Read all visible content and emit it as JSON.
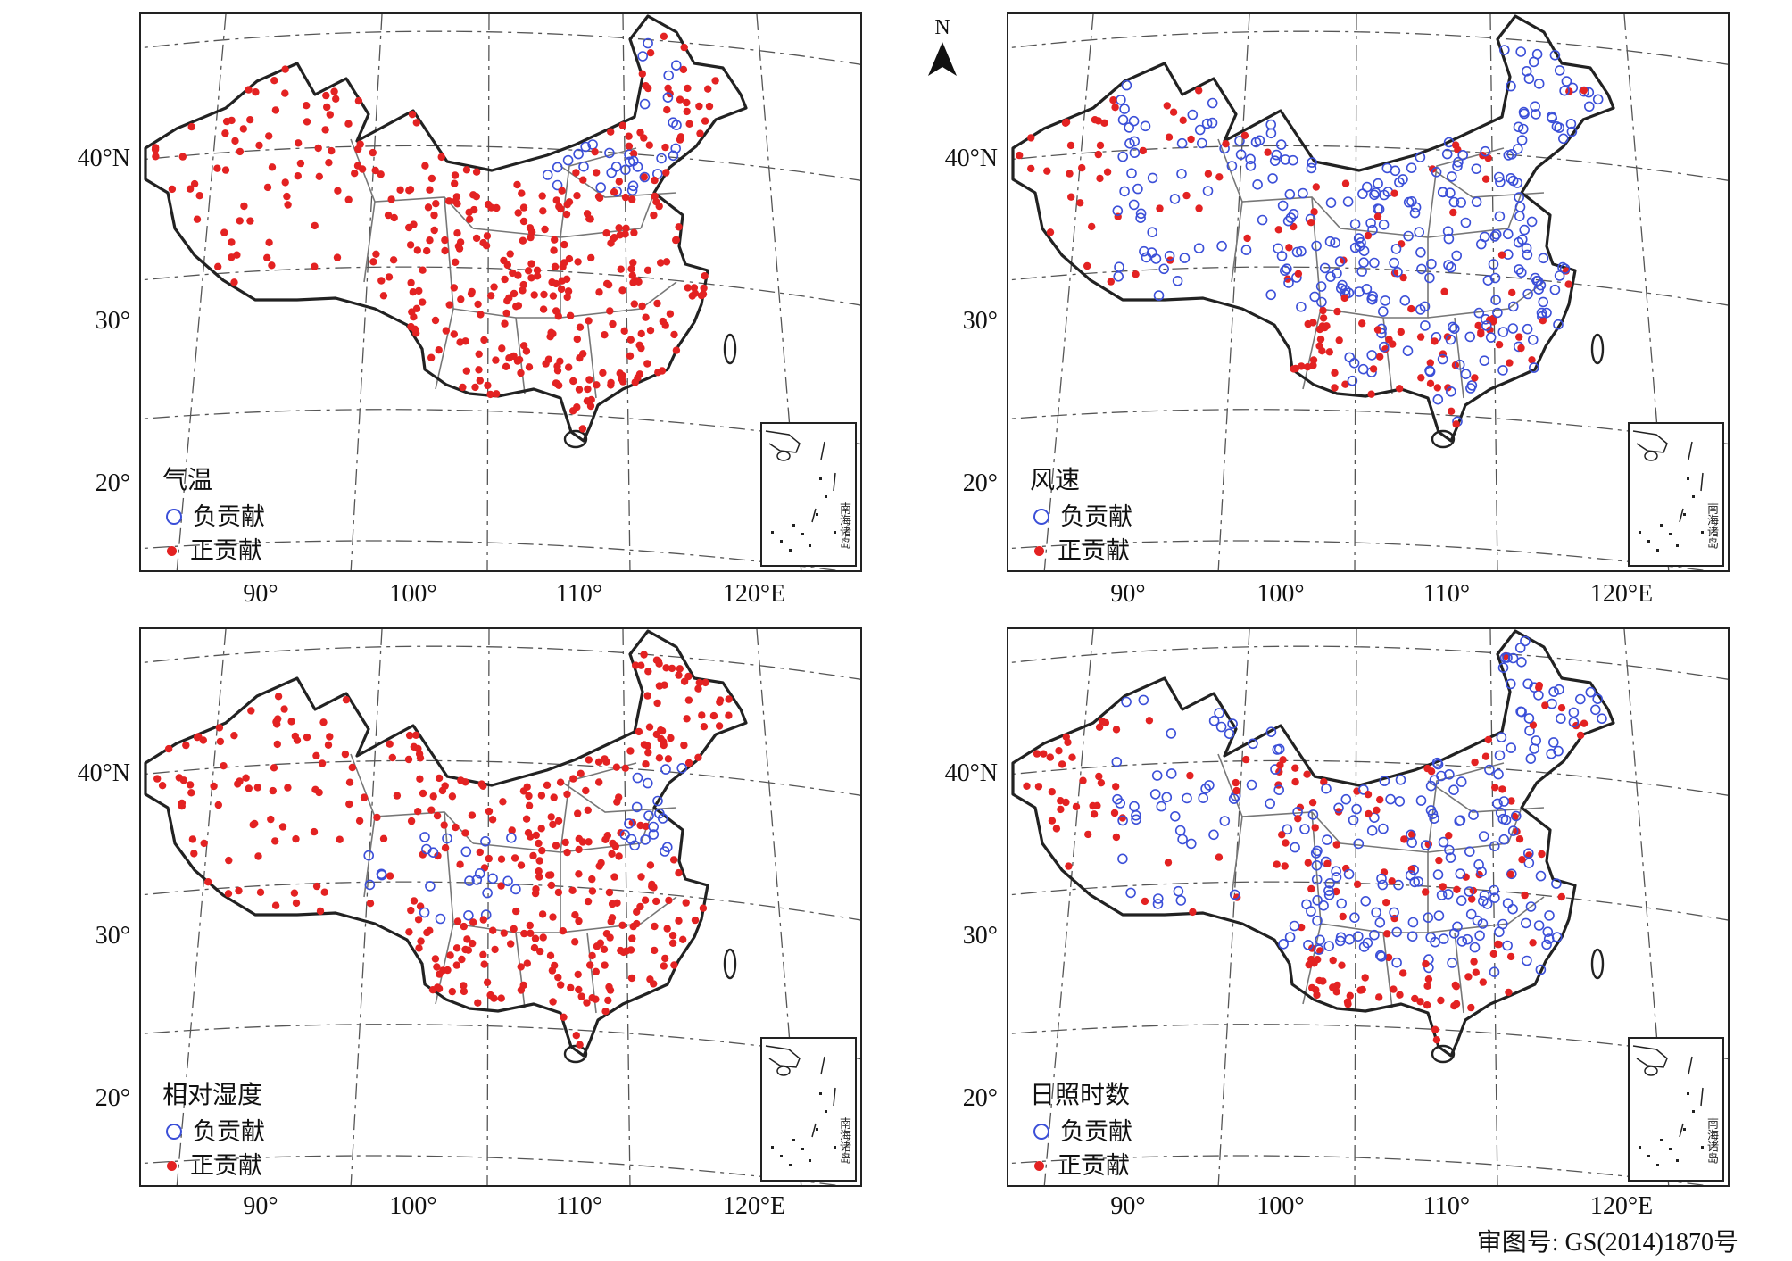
{
  "panels": [
    {
      "id": "temperature",
      "title": "气温"
    },
    {
      "id": "wind",
      "title": "风速"
    },
    {
      "id": "humidity",
      "title": "相对湿度"
    },
    {
      "id": "sunshine",
      "title": "日照时数"
    }
  ],
  "legend": {
    "negative": "负贡献",
    "positive": "正贡献"
  },
  "inset_label": "南海诸岛",
  "axes": {
    "y_ticks": [
      "40°N",
      "30°",
      "20°"
    ],
    "x_ticks": [
      "90°",
      "100°",
      "110°",
      "120°E"
    ]
  },
  "north_arrow": "N",
  "approval_number": "审图号: GS(2014)1870号",
  "colors": {
    "positive": "#e32222",
    "negative": "#3b4fd8",
    "border": "#222222",
    "province": "#777777"
  },
  "icons": {
    "north": "north-arrow-icon"
  }
}
